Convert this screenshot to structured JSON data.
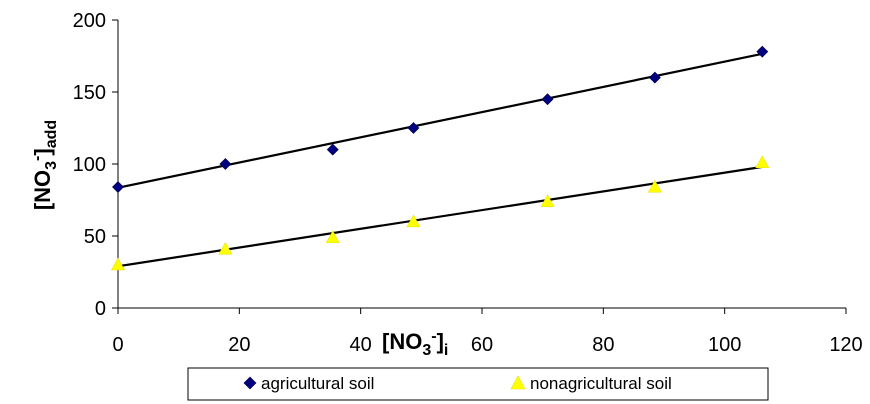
{
  "chart_data": {
    "type": "scatter",
    "title": "",
    "xlabel": {
      "main": "[NO",
      "sub": "3",
      "sup": "-",
      "close": "]",
      "tail": "i"
    },
    "ylabel": {
      "main": "[NO",
      "sub": "3",
      "sup": "-",
      "close": "]",
      "tail": "add"
    },
    "xlim": [
      0,
      120
    ],
    "ylim": [
      0,
      200
    ],
    "xticks": [
      0,
      20,
      40,
      60,
      80,
      100,
      120
    ],
    "yticks": [
      0,
      50,
      100,
      150,
      200
    ],
    "grid": false,
    "legend_position": "bottom",
    "series": [
      {
        "name": "agricultural soil",
        "marker": "diamond",
        "color": "#000080",
        "x": [
          0,
          17.7,
          35.4,
          48.7,
          70.8,
          88.5,
          106.2
        ],
        "y": [
          84,
          100,
          110,
          125,
          145,
          160,
          178
        ],
        "trendline": {
          "x": [
            0,
            106.2
          ],
          "y": [
            83.5,
            176.5
          ]
        }
      },
      {
        "name": "nonagricultural soil",
        "marker": "triangle",
        "color": "#ffff00",
        "x": [
          0,
          17.7,
          35.4,
          48.7,
          70.8,
          88.5,
          106.2
        ],
        "y": [
          30,
          41,
          49,
          60,
          74,
          84,
          101
        ],
        "trendline": {
          "x": [
            0,
            106.2
          ],
          "y": [
            29,
            98
          ]
        }
      }
    ]
  }
}
